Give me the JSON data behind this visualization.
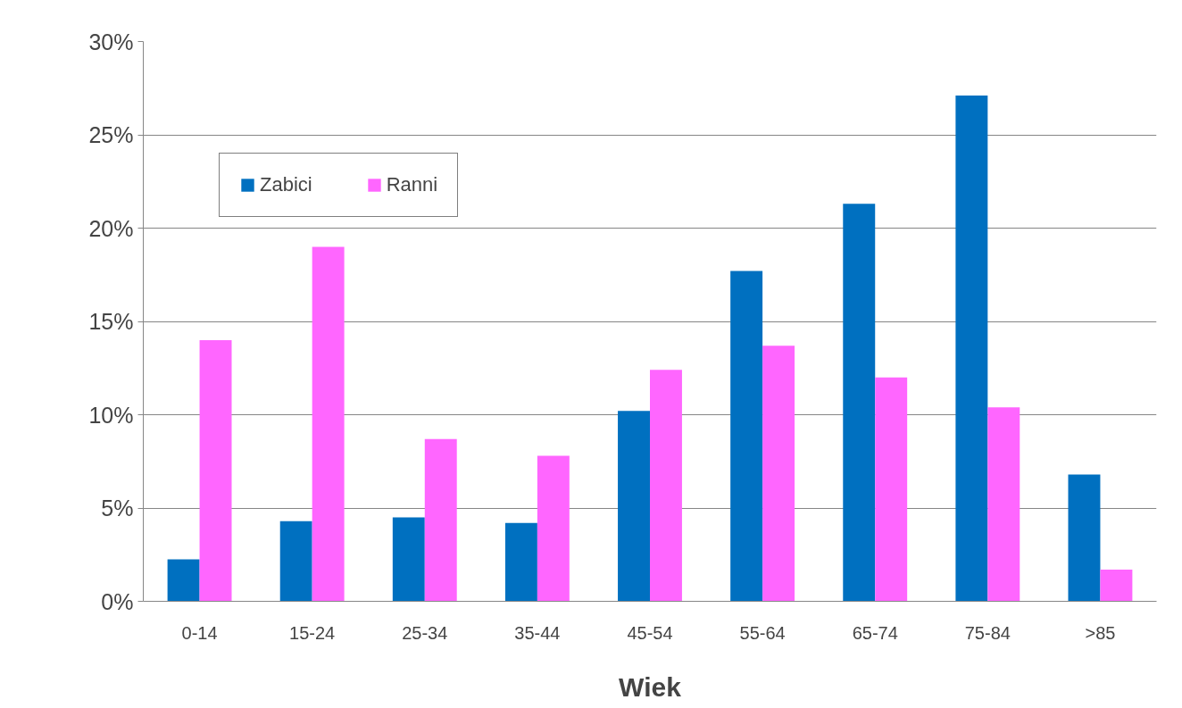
{
  "chart_data": {
    "type": "bar",
    "xlabel": "Wiek",
    "categories": [
      "0-14",
      "15-24",
      "25-34",
      "35-44",
      "45-54",
      "55-64",
      "65-74",
      "75-84",
      ">85"
    ],
    "series": [
      {
        "name": "Zabici",
        "color": "#0070c0",
        "values": [
          2.25,
          4.3,
          4.5,
          4.2,
          10.2,
          17.7,
          21.3,
          27.1,
          6.8
        ]
      },
      {
        "name": "Ranni",
        "color": "#ff66ff",
        "values": [
          14.0,
          19.0,
          8.7,
          7.8,
          12.4,
          13.7,
          12.0,
          10.4,
          1.7
        ]
      }
    ],
    "ylim": [
      0,
      30
    ],
    "yticks": [
      {
        "value": 0,
        "label": "0%"
      },
      {
        "value": 5,
        "label": "5%"
      },
      {
        "value": 10,
        "label": "10%"
      },
      {
        "value": 15,
        "label": "15%"
      },
      {
        "value": 20,
        "label": "20%"
      },
      {
        "value": 25,
        "label": "25%"
      },
      {
        "value": 30,
        "label": "30%"
      }
    ],
    "grid": "y",
    "legend": "top left"
  }
}
